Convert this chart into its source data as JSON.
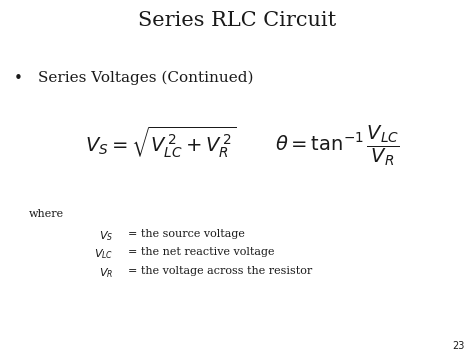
{
  "title": "Series RLC Circuit",
  "bullet": "Series Voltages (Continued)",
  "formula1": "$V_S = \\sqrt{V_{LC}^{\\,2} + V_R^{\\,2}}$",
  "formula2": "$\\theta = \\tan^{-1}\\dfrac{V_{LC}}{V_R}$",
  "where_label": "where",
  "definitions": [
    {
      "symbol": "$V_S$",
      "definition": "= the source voltage"
    },
    {
      "symbol": "$V_{LC}$",
      "definition": "= the net reactive voltage"
    },
    {
      "symbol": "$V_R$",
      "definition": "= the voltage across the resistor"
    }
  ],
  "page_number": "23",
  "bg_color": "#ffffff",
  "text_color": "#1a1a1a",
  "title_fontsize": 15,
  "bullet_fontsize": 11,
  "formula_fontsize": 14,
  "where_fontsize": 8,
  "def_fontsize": 8,
  "page_fontsize": 7
}
